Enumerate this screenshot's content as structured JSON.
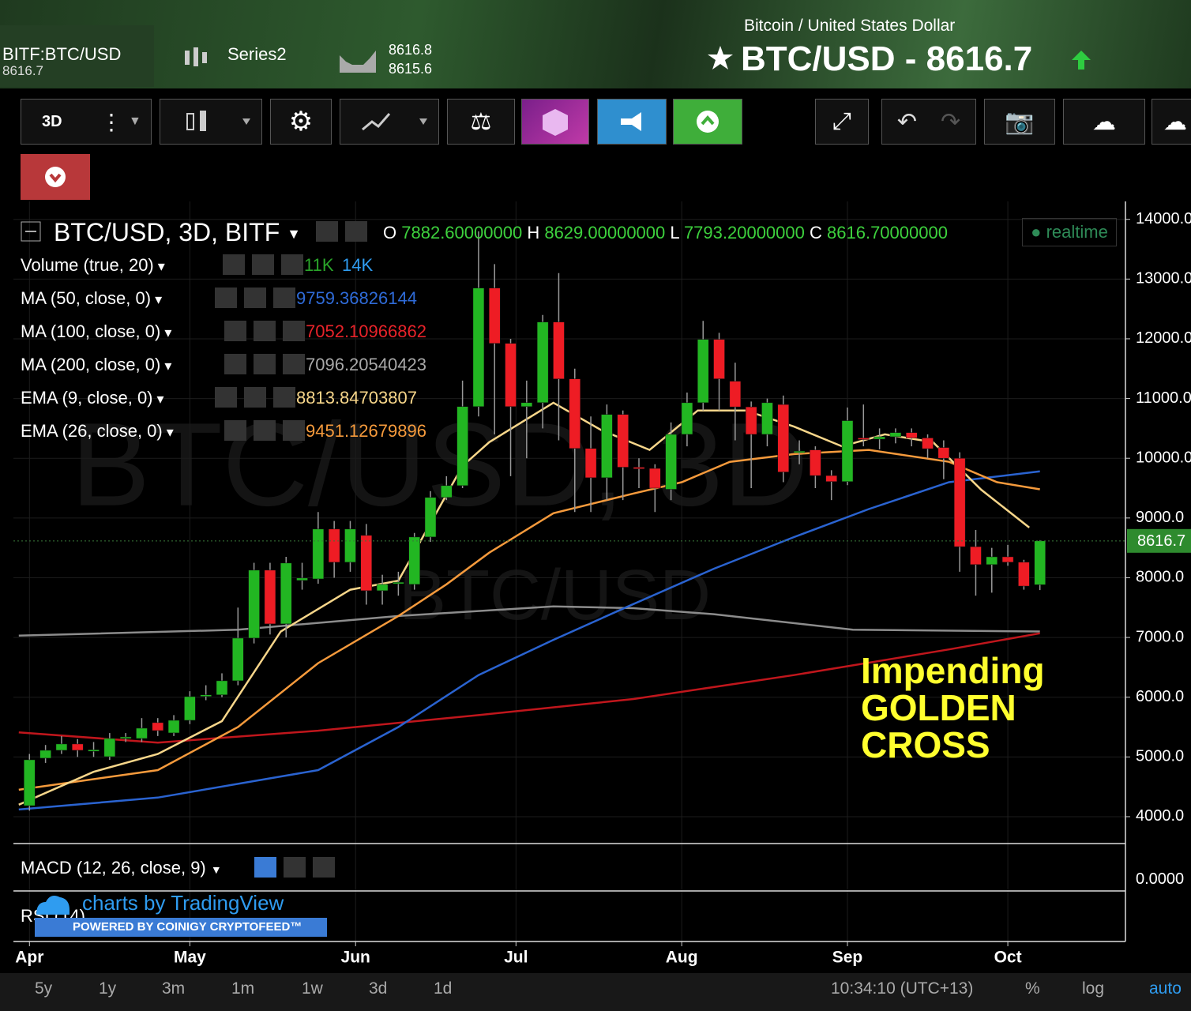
{
  "header": {
    "symbol_box": "BITF:BTC/USD",
    "symbol_price": "8616.7",
    "series": "Series2",
    "bid": "8616.8",
    "ask": "8615.6",
    "pair_name": "Bitcoin / United States Dollar",
    "title": "BTC/USD - 8616.7"
  },
  "toolbar": {
    "interval": "3D"
  },
  "legend": {
    "title": "BTC/USD, 3D, BITF",
    "o_label": "O",
    "o": "7882.60000000",
    "h_label": "H",
    "h": "8629.00000000",
    "l_label": "L",
    "l": "7793.20000000",
    "c_label": "C",
    "c": "8616.70000000",
    "realtime": "realtime"
  },
  "indicators": [
    {
      "name": "Volume (true, 20)",
      "values": [
        {
          "text": "11K",
          "color": "#2aa52a"
        },
        {
          "text": "14K",
          "color": "#2f9cf0"
        }
      ]
    },
    {
      "name": "MA (50, close, 0)",
      "values": [
        {
          "text": "9759.36826144",
          "color": "#2f6bd8"
        }
      ]
    },
    {
      "name": "MA (100, close, 0)",
      "values": [
        {
          "text": "7052.10966862",
          "color": "#e8232a"
        }
      ]
    },
    {
      "name": "MA (200, close, 0)",
      "values": [
        {
          "text": "7096.20540423",
          "color": "#a8a8a8"
        }
      ]
    },
    {
      "name": "EMA (9, close, 0)",
      "values": [
        {
          "text": "8813.84703807",
          "color": "#f7d68a"
        }
      ]
    },
    {
      "name": "EMA (26, close, 0)",
      "values": [
        {
          "text": "9451.12679896",
          "color": "#f59a3c"
        }
      ]
    }
  ],
  "watermark": {
    "big": "BTC/USD, 3D",
    "small": "BTC/USD"
  },
  "annotation": [
    "Impending",
    "GOLDEN",
    "CROSS"
  ],
  "panes": {
    "macd": "MACD (12, 26, close, 9)",
    "macd_tick": "0.0000",
    "rsi": "RSI (14)",
    "credit": "charts by TradingView",
    "powered": "POWERED BY COINIGY CRYPTOFEED™"
  },
  "footer": {
    "ranges": [
      "5y",
      "1y",
      "3m",
      "1m",
      "1w",
      "3d",
      "1d"
    ],
    "clock": "10:34:10 (UTC+13)",
    "percent": "%",
    "log": "log",
    "auto": "auto"
  },
  "chart_data": {
    "type": "candlestick",
    "up_color": "#22b622",
    "down_color": "#ee1c24",
    "x": [
      0,
      3,
      6,
      9,
      12,
      15,
      18,
      21,
      24,
      27,
      30,
      33,
      36,
      39,
      42,
      45,
      48,
      51,
      54,
      57,
      60,
      63,
      66,
      69,
      72,
      75,
      78,
      81,
      84,
      87,
      90,
      93,
      96,
      99,
      102,
      105,
      108,
      111,
      114,
      117,
      120,
      123,
      126,
      129,
      132,
      135,
      138,
      141,
      144,
      147,
      150,
      153,
      156,
      159,
      162,
      165,
      168,
      171,
      174,
      177,
      180,
      183,
      186,
      189
    ],
    "open": [
      4184,
      4979,
      5111,
      5217,
      5111,
      5005,
      5320,
      5309,
      5574,
      5402,
      5613,
      6020,
      6040,
      6275,
      6989,
      8127,
      7227,
      7955,
      7980,
      8815,
      8259,
      8709,
      7783,
      7915,
      7889,
      8682,
      9344,
      9542,
      10865,
      12849,
      11923,
      10865,
      10931,
      12280,
      11328,
      10164,
      9674,
      10733,
      9850,
      9830,
      9480,
      10400,
      10930,
      11990,
      11290,
      10860,
      10400,
      10900,
      10100,
      10140,
      9710,
      9610,
      10340,
      10320,
      10360,
      10430,
      10340,
      10180,
      10000,
      8520,
      8220,
      8350,
      8260,
      7882.6
    ],
    "high": [
      5050,
      5200,
      5350,
      5300,
      5250,
      5400,
      5400,
      5650,
      5650,
      5700,
      6100,
      6200,
      6400,
      7500,
      8250,
      8250,
      8350,
      8250,
      9100,
      8950,
      8950,
      8900,
      8050,
      8100,
      8750,
      9450,
      9700,
      11300,
      13800,
      13250,
      12000,
      11300,
      12400,
      13100,
      11500,
      10700,
      10900,
      10800,
      10000,
      9900,
      10600,
      11100,
      12300,
      12100,
      11600,
      10950,
      11000,
      11050,
      10300,
      10200,
      9800,
      10850,
      10900,
      10500,
      10500,
      10500,
      10400,
      10300,
      10100,
      8800,
      8500,
      8550,
      8300,
      8629
    ],
    "low": [
      4100,
      4900,
      5050,
      5000,
      5000,
      4950,
      5250,
      5250,
      5350,
      5350,
      5550,
      5950,
      6000,
      6200,
      6900,
      7050,
      7000,
      7800,
      7900,
      8000,
      8100,
      7550,
      7550,
      7700,
      7800,
      8600,
      9300,
      9500,
      10700,
      10400,
      9700,
      10000,
      10500,
      10300,
      9100,
      9100,
      9300,
      9300,
      9500,
      9100,
      9300,
      10200,
      10800,
      10800,
      10300,
      9500,
      10200,
      9600,
      9900,
      9500,
      9300,
      9550,
      10200,
      10150,
      10250,
      10200,
      10000,
      9650,
      8100,
      7700,
      7750,
      8200,
      7800,
      7793.2
    ],
    "close": [
      4952,
      5111,
      5217,
      5111,
      5120,
      5309,
      5335,
      5481,
      5441,
      5613,
      6010,
      6040,
      6275,
      6989,
      8127,
      7227,
      8246,
      7995,
      8815,
      8259,
      8815,
      7783,
      7889,
      7925,
      8682,
      9344,
      9542,
      10865,
      12849,
      11923,
      10865,
      10931,
      12280,
      11328,
      10164,
      9674,
      10733,
      9850,
      9840,
      9500,
      10400,
      10930,
      11990,
      11330,
      10860,
      10400,
      10930,
      9770,
      10120,
      9710,
      9610,
      10630,
      10330,
      10360,
      10430,
      10340,
      10160,
      10000,
      8520,
      8220,
      8350,
      8260,
      7860,
      8616.7
    ],
    "lines": [
      {
        "name": "MA (200, close, 0)",
        "color": "#8c8c8c",
        "x": [
          -2,
          39,
          69,
          98,
          113,
          128,
          154,
          189
        ],
        "values": [
          7030,
          7130,
          7360,
          7520,
          7490,
          7390,
          7130,
          7100
        ]
      },
      {
        "name": "MA (100, close, 0)",
        "color": "#c0161c",
        "x": [
          -2,
          24,
          54,
          84,
          113,
          143,
          172,
          189
        ],
        "values": [
          5410,
          5240,
          5440,
          5700,
          5970,
          6370,
          6800,
          7070
        ]
      },
      {
        "name": "MA (50, close, 0)",
        "color": "#2a63d0",
        "x": [
          -2,
          24,
          54,
          69,
          84,
          98,
          113,
          128,
          143,
          157,
          172,
          189
        ],
        "values": [
          4120,
          4320,
          4780,
          5500,
          6370,
          6960,
          7560,
          8150,
          8680,
          9150,
          9600,
          9780
        ]
      },
      {
        "name": "EMA (26, close, 0)",
        "color": "#f59a3c",
        "x": [
          -2,
          24,
          39,
          54,
          69,
          78,
          86,
          98,
          113,
          122,
          131,
          143,
          157,
          172,
          181,
          189
        ],
        "values": [
          4450,
          4780,
          5500,
          6570,
          7360,
          7890,
          8420,
          9080,
          9410,
          9600,
          9940,
          10070,
          10140,
          9940,
          9600,
          9480
        ]
      },
      {
        "name": "EMA (9, close, 0)",
        "color": "#f7d68a",
        "x": [
          -2,
          12,
          24,
          36,
          47,
          60,
          69,
          81,
          86,
          98,
          107,
          116,
          125,
          134,
          143,
          152,
          160,
          169,
          178,
          187
        ],
        "values": [
          4200,
          4750,
          5050,
          5600,
          7100,
          7800,
          7950,
          9870,
          10270,
          10930,
          10470,
          10140,
          10800,
          10800,
          10530,
          10200,
          10400,
          10270,
          9475,
          8840
        ]
      }
    ],
    "xlim": [
      -3,
      205
    ],
    "ylim": [
      3550,
      14300
    ],
    "xticks": [
      {
        "value": 0,
        "label": "Apr"
      },
      {
        "value": 30,
        "label": "May"
      },
      {
        "value": 61,
        "label": "Jun"
      },
      {
        "value": 91,
        "label": "Jul"
      },
      {
        "value": 122,
        "label": "Aug"
      },
      {
        "value": 153,
        "label": "Sep"
      },
      {
        "value": 183,
        "label": "Oct"
      }
    ],
    "yticks": [
      {
        "value": 14000,
        "label": "14000.0"
      },
      {
        "value": 13000,
        "label": "13000.0"
      },
      {
        "value": 12000,
        "label": "12000.0"
      },
      {
        "value": 11000,
        "label": "11000.0"
      },
      {
        "value": 10000,
        "label": "10000.0"
      },
      {
        "value": 9000,
        "label": "9000.0"
      },
      {
        "value": 8000,
        "label": "8000.0"
      },
      {
        "value": 7000,
        "label": "7000.0"
      },
      {
        "value": 6000,
        "label": "6000.0"
      },
      {
        "value": 5000,
        "label": "5000.0"
      },
      {
        "value": 4000,
        "label": "4000.0"
      }
    ],
    "last_price": 8616.7,
    "last_label": "8616.7",
    "grid": true
  }
}
